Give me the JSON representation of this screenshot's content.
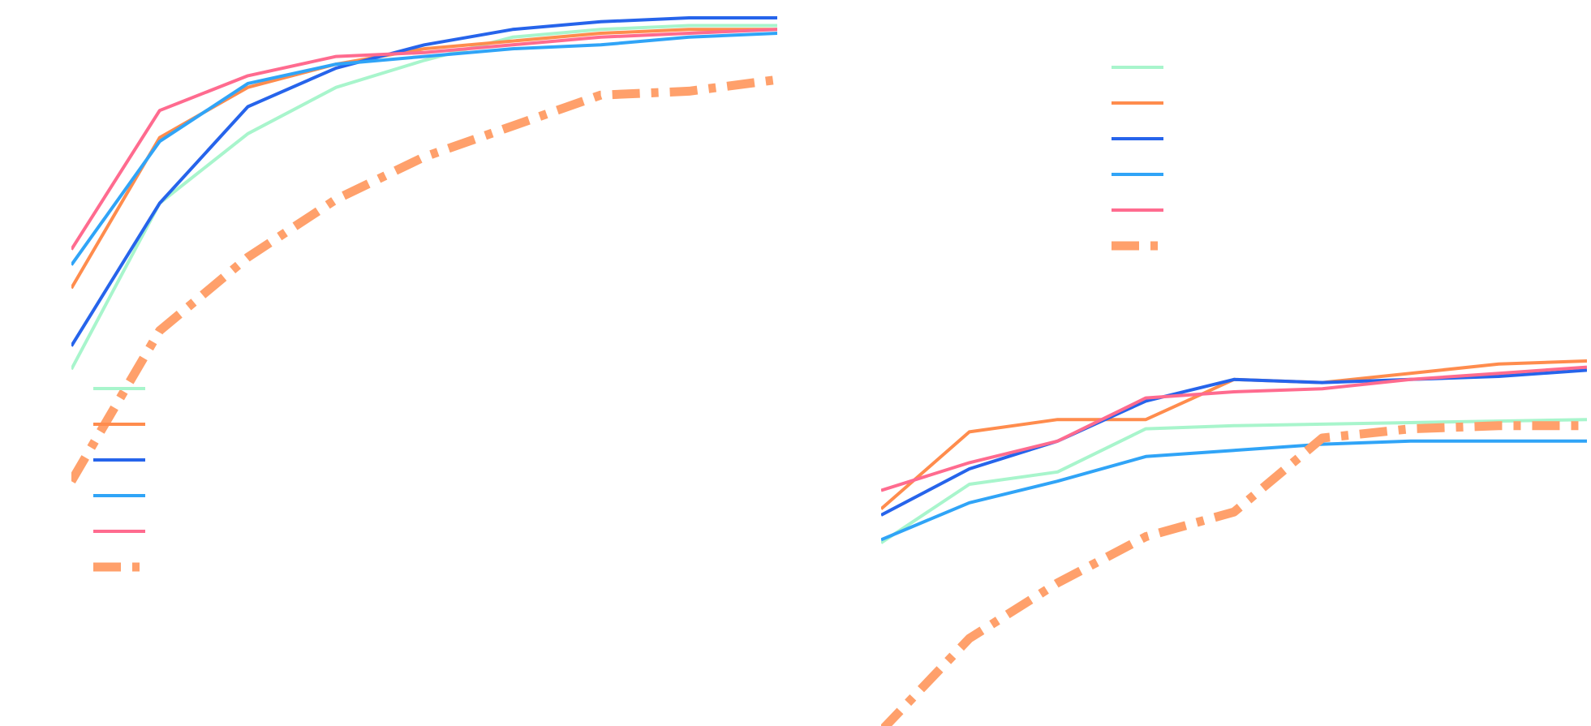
{
  "chart_data": [
    {
      "type": "line",
      "panel": "top-left",
      "x": [
        1,
        2,
        3,
        4,
        5,
        6,
        7,
        8,
        9
      ],
      "ylim": [
        0,
        1
      ],
      "grid": false,
      "series": [
        {
          "values": [
            0.09,
            0.52,
            0.7,
            0.82,
            0.89,
            0.95,
            0.97,
            0.98,
            0.98
          ],
          "color": "#a8f5cc",
          "style": "solid"
        },
        {
          "values": [
            0.3,
            0.69,
            0.82,
            0.88,
            0.92,
            0.94,
            0.96,
            0.97,
            0.97
          ],
          "color": "#ff8c4d",
          "style": "solid"
        },
        {
          "values": [
            0.15,
            0.52,
            0.77,
            0.87,
            0.93,
            0.97,
            0.99,
            1.0,
            1.0
          ],
          "color": "#2664eb",
          "style": "solid"
        },
        {
          "values": [
            0.36,
            0.68,
            0.83,
            0.88,
            0.9,
            0.92,
            0.93,
            0.95,
            0.96
          ],
          "color": "#30a4f7",
          "style": "solid"
        },
        {
          "values": [
            0.4,
            0.76,
            0.85,
            0.9,
            0.91,
            0.93,
            0.95,
            0.96,
            0.97
          ],
          "color": "#ff6b8f",
          "style": "solid"
        },
        {
          "values": [
            -0.2,
            0.19,
            0.38,
            0.53,
            0.64,
            0.72,
            0.8,
            0.81,
            0.84
          ],
          "color": "#ffa06b",
          "style": "dashdot"
        }
      ],
      "legend_placement": "right"
    },
    {
      "type": "line",
      "panel": "bottom-right",
      "x": [
        1,
        2,
        3,
        4,
        5,
        6,
        7,
        8,
        9
      ],
      "ylim": [
        0,
        1
      ],
      "grid": false,
      "series": [
        {
          "values": [
            0.36,
            0.55,
            0.59,
            0.73,
            0.74,
            0.745,
            0.75,
            0.755,
            0.76
          ],
          "color": "#a8f5cc",
          "style": "solid"
        },
        {
          "values": [
            0.47,
            0.72,
            0.76,
            0.76,
            0.89,
            0.88,
            0.91,
            0.94,
            0.95
          ],
          "color": "#ff8c4d",
          "style": "solid"
        },
        {
          "values": [
            0.45,
            0.6,
            0.69,
            0.82,
            0.89,
            0.88,
            0.89,
            0.9,
            0.92
          ],
          "color": "#2664eb",
          "style": "solid"
        },
        {
          "values": [
            0.37,
            0.49,
            0.56,
            0.64,
            0.66,
            0.68,
            0.69,
            0.69,
            0.69
          ],
          "color": "#30a4f7",
          "style": "solid"
        },
        {
          "values": [
            0.53,
            0.62,
            0.69,
            0.83,
            0.85,
            0.86,
            0.89,
            0.91,
            0.93
          ],
          "color": "#ff6b8f",
          "style": "solid"
        },
        {
          "values": [
            -0.25,
            0.05,
            0.23,
            0.38,
            0.46,
            0.7,
            0.73,
            0.74,
            0.74
          ],
          "color": "#ffa06b",
          "style": "dashdot"
        }
      ],
      "legend_placement": "left"
    }
  ]
}
